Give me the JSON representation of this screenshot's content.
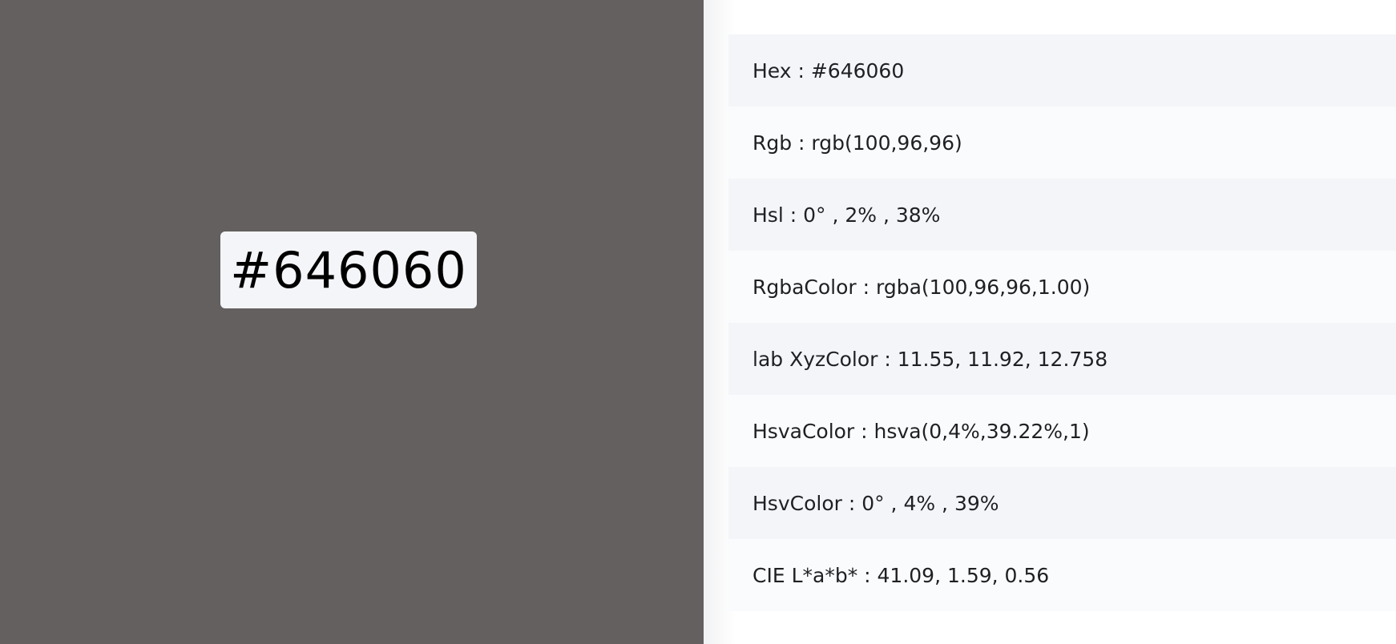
{
  "swatch": {
    "color": "#646060",
    "hex_label": "#646060"
  },
  "values": [
    {
      "label": "Hex : #646060"
    },
    {
      "label": "Rgb : rgb(100,96,96)"
    },
    {
      "label": "Hsl : 0° , 2% , 38%"
    },
    {
      "label": "RgbaColor : rgba(100,96,96,1.00)"
    },
    {
      "label": "lab XyzColor : 11.55, 11.92, 12.758"
    },
    {
      "label": "HsvaColor : hsva(0,4%,39.22%,1)"
    },
    {
      "label": "HsvColor : 0° , 4% , 39%"
    },
    {
      "label": "CIE L*a*b* : 41.09, 1.59, 0.56"
    }
  ],
  "colors": {
    "row_odd": "#f4f5f8",
    "row_even": "#fafbfd",
    "text": "#1f2023"
  }
}
